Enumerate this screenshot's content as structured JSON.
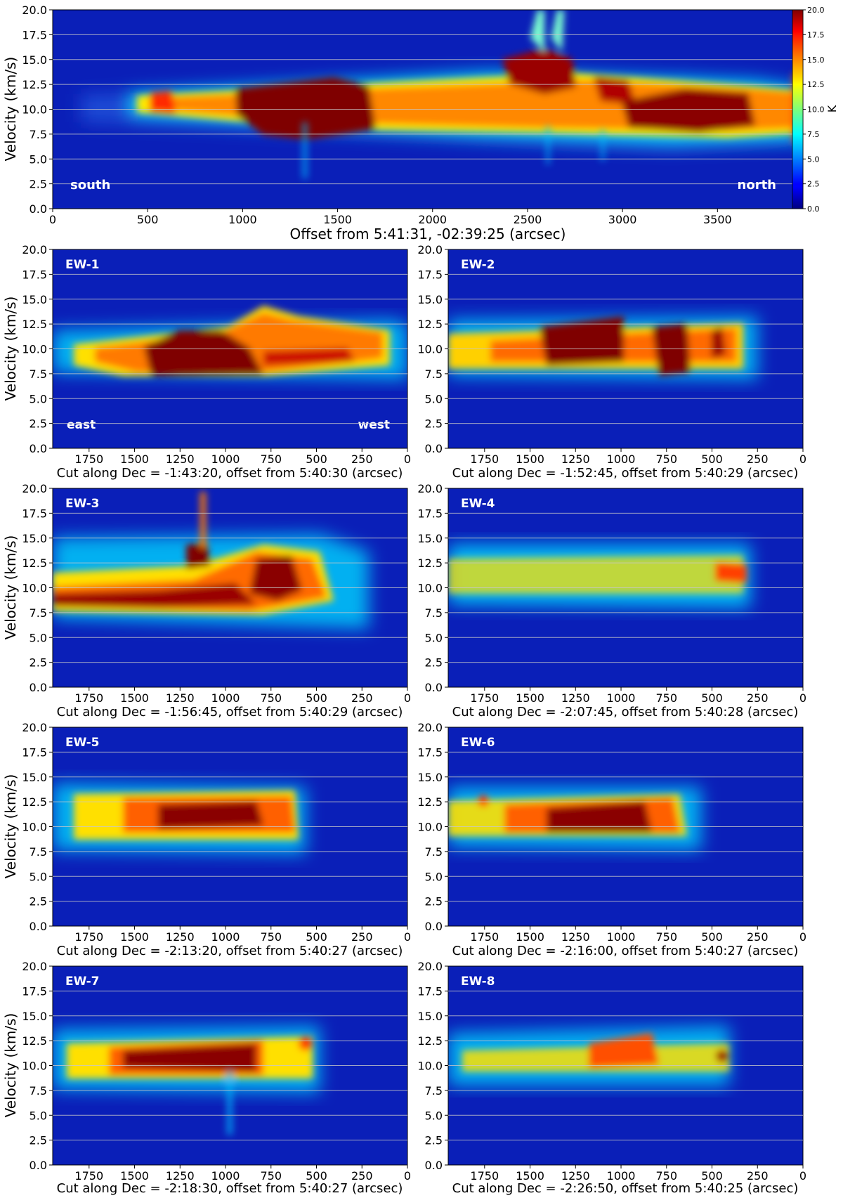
{
  "figure": {
    "ylabel": "Velocity (km/s)",
    "colorbar": {
      "label": "K",
      "ticks": [
        "20.0",
        "17.5",
        "15.0",
        "12.5",
        "10.0",
        "7.5",
        "5.0",
        "2.5",
        "0.0"
      ],
      "range": [
        0,
        20
      ],
      "colormap": "jet"
    }
  },
  "chart_data": [
    {
      "type": "heatmap",
      "id": "main",
      "title": "",
      "xlabel": "Offset from 5:41:31, -02:39:25 (arcsec)",
      "ylabel": "Velocity (km/s)",
      "xlim": [
        0,
        3950
      ],
      "ylim": [
        0,
        20
      ],
      "xticks": [
        0,
        500,
        1000,
        1500,
        2000,
        2500,
        3000,
        3500
      ],
      "yticks": [
        "0.0",
        "2.5",
        "5.0",
        "7.5",
        "10.0",
        "12.5",
        "15.0",
        "17.5",
        "20.0"
      ],
      "annotations": [
        "south",
        "north"
      ],
      "horizontal_gridlines": true,
      "emission_ridge_center_kms": 10.5
    },
    {
      "type": "heatmap",
      "id": "EW-1",
      "title": "EW-1",
      "xlabel": "Cut along Dec = -1:43:20, offset from 5:40:30 (arcsec)",
      "ylabel": "Velocity (km/s)",
      "xlim": [
        1950,
        0
      ],
      "ylim": [
        0,
        20
      ],
      "xticks": [
        1750,
        1500,
        1250,
        1000,
        750,
        500,
        250,
        0
      ],
      "yticks": [
        "0.0",
        "2.5",
        "5.0",
        "7.5",
        "10.0",
        "12.5",
        "15.0",
        "17.5",
        "20.0"
      ],
      "annotations": [
        "east",
        "west"
      ]
    },
    {
      "type": "heatmap",
      "id": "EW-2",
      "title": "EW-2",
      "xlabel": "Cut along Dec = -1:52:45, offset from 5:40:29 (arcsec)",
      "xlim": [
        1950,
        0
      ],
      "ylim": [
        0,
        20
      ],
      "xticks": [
        1750,
        1500,
        1250,
        1000,
        750,
        500,
        250,
        0
      ],
      "yticks": [
        "0.0",
        "2.5",
        "5.0",
        "7.5",
        "10.0",
        "12.5",
        "15.0",
        "17.5",
        "20.0"
      ]
    },
    {
      "type": "heatmap",
      "id": "EW-3",
      "title": "EW-3",
      "xlabel": "Cut along Dec = -1:56:45, offset from 5:40:29 (arcsec)",
      "ylabel": "Velocity (km/s)",
      "xlim": [
        1950,
        0
      ],
      "ylim": [
        0,
        20
      ],
      "xticks": [
        1750,
        1500,
        1250,
        1000,
        750,
        500,
        250,
        0
      ],
      "yticks": [
        "0.0",
        "2.5",
        "5.0",
        "7.5",
        "10.0",
        "12.5",
        "15.0",
        "17.5",
        "20.0"
      ]
    },
    {
      "type": "heatmap",
      "id": "EW-4",
      "title": "EW-4",
      "xlabel": "Cut along Dec = -2:07:45, offset from 5:40:28 (arcsec)",
      "xlim": [
        1950,
        0
      ],
      "ylim": [
        0,
        20
      ],
      "xticks": [
        1750,
        1500,
        1250,
        1000,
        750,
        500,
        250,
        0
      ],
      "yticks": [
        "0.0",
        "2.5",
        "5.0",
        "7.5",
        "10.0",
        "12.5",
        "15.0",
        "17.5",
        "20.0"
      ]
    },
    {
      "type": "heatmap",
      "id": "EW-5",
      "title": "EW-5",
      "xlabel": "Cut along Dec = -2:13:20, offset from 5:40:27 (arcsec)",
      "ylabel": "Velocity (km/s)",
      "xlim": [
        1950,
        0
      ],
      "ylim": [
        0,
        20
      ],
      "xticks": [
        1750,
        1500,
        1250,
        1000,
        750,
        500,
        250,
        0
      ],
      "yticks": [
        "0.0",
        "2.5",
        "5.0",
        "7.5",
        "10.0",
        "12.5",
        "15.0",
        "17.5",
        "20.0"
      ]
    },
    {
      "type": "heatmap",
      "id": "EW-6",
      "title": "EW-6",
      "xlabel": "Cut along Dec = -2:16:00, offset from 5:40:27 (arcsec)",
      "xlim": [
        1950,
        0
      ],
      "ylim": [
        0,
        20
      ],
      "xticks": [
        1750,
        1500,
        1250,
        1000,
        750,
        500,
        250,
        0
      ],
      "yticks": [
        "0.0",
        "2.5",
        "5.0",
        "7.5",
        "10.0",
        "12.5",
        "15.0",
        "17.5",
        "20.0"
      ]
    },
    {
      "type": "heatmap",
      "id": "EW-7",
      "title": "EW-7",
      "xlabel": "Cut along Dec = -2:18:30, offset from 5:40:27 (arcsec)",
      "ylabel": "Velocity (km/s)",
      "xlim": [
        1950,
        0
      ],
      "ylim": [
        0,
        20
      ],
      "xticks": [
        1750,
        1500,
        1250,
        1000,
        750,
        500,
        250,
        0
      ],
      "yticks": [
        "0.0",
        "2.5",
        "5.0",
        "7.5",
        "10.0",
        "12.5",
        "15.0",
        "17.5",
        "20.0"
      ]
    },
    {
      "type": "heatmap",
      "id": "EW-8",
      "title": "EW-8",
      "xlabel": "Cut along Dec = -2:26:50, offset from 5:40:25 (arcsec)",
      "xlim": [
        1950,
        0
      ],
      "ylim": [
        0,
        20
      ],
      "xticks": [
        1750,
        1500,
        1250,
        1000,
        750,
        500,
        250,
        0
      ],
      "yticks": [
        "0.0",
        "2.5",
        "5.0",
        "7.5",
        "10.0",
        "12.5",
        "15.0",
        "17.5",
        "20.0"
      ]
    }
  ]
}
